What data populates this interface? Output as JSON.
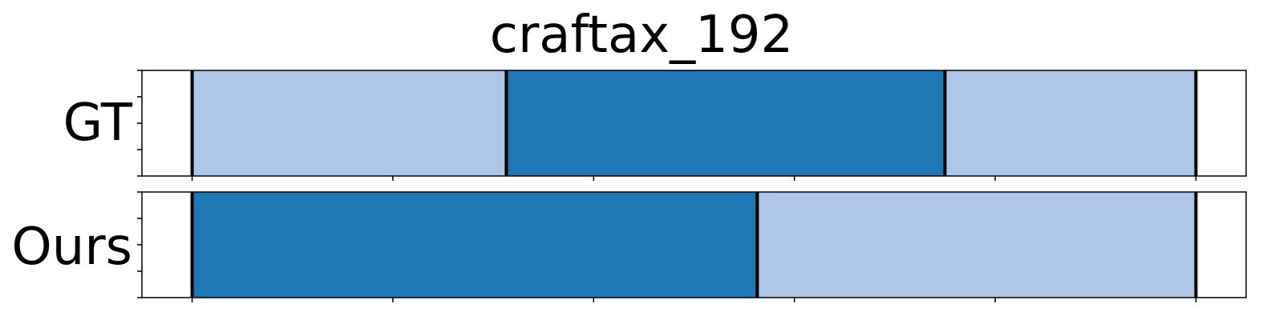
{
  "chart_data": {
    "type": "bar",
    "title": "craftax_192",
    "xlabel": "",
    "ylabel": "",
    "xlim": [
      -0.05,
      1.05
    ],
    "grid": false,
    "rows": [
      {
        "name": "GT",
        "segments": [
          {
            "start": 0.0,
            "end": 0.313,
            "color": "#aec7e8"
          },
          {
            "start": 0.313,
            "end": 0.75,
            "color": "#1f77b4"
          },
          {
            "start": 0.75,
            "end": 1.0,
            "color": "#aec7e8"
          }
        ]
      },
      {
        "name": "Ours",
        "segments": [
          {
            "start": 0.0,
            "end": 0.563,
            "color": "#1f77b4"
          },
          {
            "start": 0.563,
            "end": 1.0,
            "color": "#aec7e8"
          }
        ]
      }
    ],
    "x_ticks": [
      0.0,
      0.2,
      0.4,
      0.6,
      0.8,
      1.0
    ],
    "y_ticks_per_row": 5
  }
}
